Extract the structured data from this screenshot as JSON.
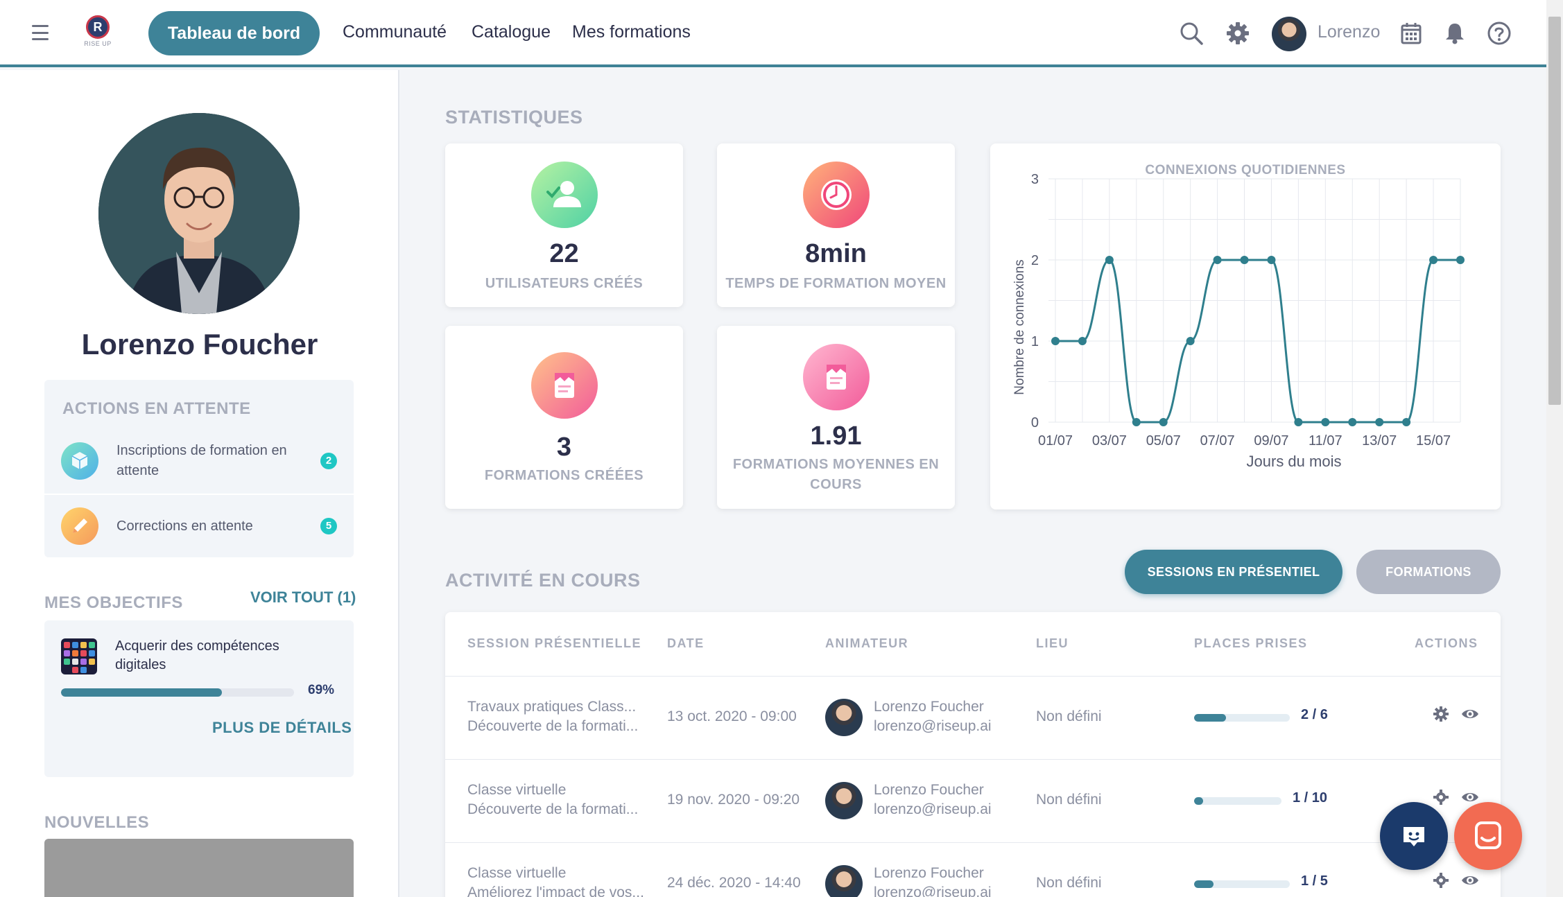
{
  "brand": {
    "logo_letter": "R",
    "logo_sub": "RISE UP"
  },
  "nav": {
    "dashboard": "Tableau de bord",
    "community": "Communauté",
    "catalog": "Catalogue",
    "my_trainings": "Mes formations",
    "user": "Lorenzo"
  },
  "profile": {
    "name": "Lorenzo Foucher"
  },
  "pending": {
    "title": "ACTIONS EN ATTENTE",
    "items": [
      {
        "label": "Inscriptions de formation en attente",
        "count": "2"
      },
      {
        "label": "Corrections en attente",
        "count": "5"
      }
    ]
  },
  "objectives": {
    "title": "MES OBJECTIFS",
    "see_all": "VOIR TOUT (1)",
    "item": {
      "label": "Acquerir des compétences digitales",
      "percent": "69%",
      "progress": 0.69
    },
    "details": "PLUS DE DÉTAILS"
  },
  "news": {
    "title": "NOUVELLES"
  },
  "stats": {
    "title": "STATISTIQUES",
    "cards": [
      {
        "value": "22",
        "label": "UTILISATEURS CRÉÉS"
      },
      {
        "value": "8min",
        "label": "TEMPS DE FORMATION MOYEN"
      },
      {
        "value": "3",
        "label": "FORMATIONS CRÉÉES"
      },
      {
        "value": "1.91",
        "label": "FORMATIONS MOYENNES EN COURS"
      }
    ]
  },
  "chart_data": {
    "type": "line",
    "title": "CONNEXIONS QUOTIDIENNES",
    "xlabel": "Jours du mois",
    "ylabel": "Nombre de connexions",
    "x": [
      "01/07",
      "02/07",
      "03/07",
      "04/07",
      "05/07",
      "06/07",
      "07/07",
      "08/07",
      "09/07",
      "10/07",
      "11/07",
      "12/07",
      "13/07",
      "14/07",
      "15/07",
      "16/07"
    ],
    "xticks": [
      "01/07",
      "03/07",
      "05/07",
      "07/07",
      "09/07",
      "11/07",
      "13/07",
      "15/07"
    ],
    "series": [
      {
        "values": [
          1,
          1,
          2,
          0,
          0,
          1,
          2,
          2,
          2,
          0,
          0,
          0,
          0,
          0,
          2,
          2
        ]
      }
    ],
    "ylim": [
      0,
      3
    ],
    "yticks": [
      "0",
      "1",
      "2",
      "3"
    ],
    "grid": true,
    "color": "#2f7f8d"
  },
  "activity": {
    "title": "ACTIVITÉ EN COURS",
    "tab_sessions": "SESSIONS EN PRÉSENTIEL",
    "tab_formations": "FORMATIONS",
    "headers": [
      "SESSION PRÉSENTIELLE",
      "DATE",
      "ANIMATEUR",
      "LIEU",
      "PLACES PRISES",
      "ACTIONS"
    ],
    "rows": [
      {
        "session": "Travaux pratiques Class...",
        "training": "Découverte de la formati...",
        "date": "13 oct. 2020 - 09:00",
        "animator": "Lorenzo Foucher",
        "email": "lorenzo@riseup.ai",
        "place": "Non défini",
        "places": "2 / 6",
        "fill": 0.33
      },
      {
        "session": "Classe virtuelle",
        "training": "Découverte de la formati...",
        "date": "19 nov. 2020 - 09:20",
        "animator": "Lorenzo Foucher",
        "email": "lorenzo@riseup.ai",
        "place": "Non défini",
        "places": "1 / 10",
        "fill": 0.1
      },
      {
        "session": "Classe virtuelle",
        "training": "Améliorez l'impact de vos...",
        "date": "24 déc. 2020 - 14:40",
        "animator": "Lorenzo Foucher",
        "email": "lorenzo@riseup.ai",
        "place": "Non défini",
        "places": "1 / 5",
        "fill": 0.2
      }
    ]
  },
  "colors": {
    "accent": "#3e8398",
    "muted_tab": "#b3b8c5",
    "badge": "#1fc7c4",
    "fab_dark": "#1b3a6b",
    "fab_orange": "#f26b52"
  }
}
